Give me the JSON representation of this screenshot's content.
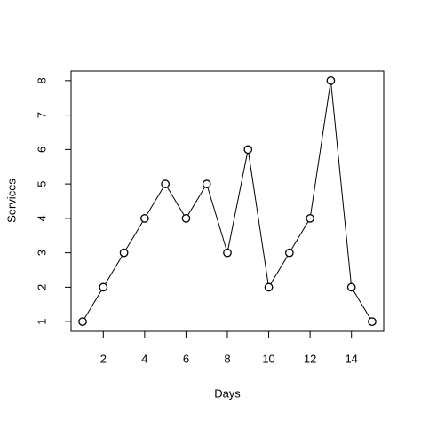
{
  "chart_data": {
    "type": "line",
    "xlabel": "Days",
    "ylabel": "Services",
    "x": [
      1,
      2,
      3,
      4,
      5,
      6,
      7,
      8,
      9,
      10,
      11,
      12,
      13,
      14,
      15
    ],
    "values": [
      1,
      2,
      3,
      4,
      5,
      4,
      5,
      3,
      6,
      2,
      3,
      4,
      8,
      2,
      1
    ],
    "color": "#000000",
    "marker": "circle",
    "xlim": [
      0.44,
      15.56
    ],
    "xticks": [
      2,
      4,
      6,
      8,
      10,
      12,
      14
    ],
    "ylim": [
      0.72,
      8.28
    ],
    "yticks": [
      1,
      2,
      3,
      4,
      5,
      6,
      7,
      8
    ]
  }
}
